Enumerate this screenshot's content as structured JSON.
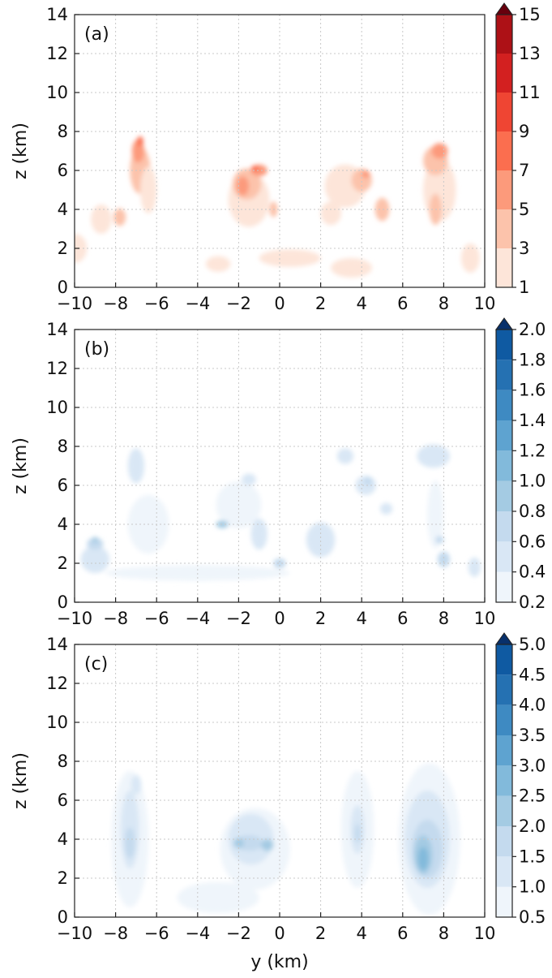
{
  "chart_data": [
    {
      "type": "heatmap",
      "panel_label": "(a)",
      "xlabel": "",
      "ylabel": "z (km)",
      "xlim": [
        -10,
        10
      ],
      "ylim": [
        0,
        14
      ],
      "xticks": [
        "−10",
        "−8",
        "−6",
        "−4",
        "−2",
        "0",
        "2",
        "4",
        "6",
        "8",
        "10"
      ],
      "yticks": [
        "0",
        "2",
        "4",
        "6",
        "8",
        "10",
        "12",
        "14"
      ],
      "grid": true,
      "colorbar": {
        "levels": [
          1,
          3,
          5,
          7,
          9,
          11,
          13,
          15
        ],
        "labels": [
          "1",
          "3",
          "5",
          "7",
          "9",
          "11",
          "13",
          "15"
        ],
        "colors": [
          "#fde5d9",
          "#fcc3ab",
          "#fc9a7b",
          "#fb6e4f",
          "#ef4533",
          "#d32020",
          "#ad1116"
        ],
        "extend_color": "#67000d",
        "colormap": "Reds"
      },
      "cells": [
        [
          -10,
          2,
          1.2,
          1.5,
          1
        ],
        [
          -8.7,
          3.5,
          1.0,
          1.5,
          1
        ],
        [
          -7.8,
          3.6,
          0.6,
          0.9,
          3
        ],
        [
          -6.8,
          6.0,
          1.0,
          2.4,
          3
        ],
        [
          -6.9,
          7.0,
          0.6,
          1.2,
          5
        ],
        [
          -6.8,
          7.5,
          0.3,
          0.5,
          7
        ],
        [
          -6.4,
          5.0,
          0.8,
          2.4,
          1
        ],
        [
          -1.5,
          4.5,
          2.0,
          2.8,
          1
        ],
        [
          -1.6,
          5.3,
          1.4,
          1.6,
          3
        ],
        [
          -1.8,
          5.2,
          0.6,
          1.0,
          5
        ],
        [
          -1.0,
          6.0,
          0.8,
          0.6,
          5
        ],
        [
          -1.2,
          6.1,
          0.4,
          0.3,
          7
        ],
        [
          -0.3,
          4.0,
          0.4,
          0.8,
          3
        ],
        [
          -3.0,
          1.2,
          1.2,
          0.8,
          1
        ],
        [
          0.5,
          1.5,
          3.0,
          0.9,
          1
        ],
        [
          3.5,
          1.0,
          2.0,
          1.0,
          1
        ],
        [
          3.2,
          5.2,
          2.0,
          2.2,
          1
        ],
        [
          4.0,
          5.5,
          1.0,
          1.2,
          3
        ],
        [
          4.2,
          5.8,
          0.4,
          0.4,
          5
        ],
        [
          5.0,
          4.0,
          0.7,
          1.2,
          3
        ],
        [
          2.5,
          3.8,
          1.0,
          1.2,
          1
        ],
        [
          7.8,
          5.0,
          1.6,
          3.2,
          1
        ],
        [
          7.6,
          6.5,
          1.2,
          1.5,
          3
        ],
        [
          7.8,
          7.0,
          0.8,
          0.8,
          5
        ],
        [
          7.6,
          4.0,
          0.6,
          1.6,
          3
        ],
        [
          9.3,
          1.5,
          0.9,
          1.5,
          1
        ]
      ]
    },
    {
      "type": "heatmap",
      "panel_label": "(b)",
      "xlabel": "",
      "ylabel": "z (km)",
      "xlim": [
        -10,
        10
      ],
      "ylim": [
        0,
        14
      ],
      "xticks": [
        "−10",
        "−8",
        "−6",
        "−4",
        "−2",
        "0",
        "2",
        "4",
        "6",
        "8",
        "10"
      ],
      "yticks": [
        "0",
        "2",
        "4",
        "6",
        "8",
        "10",
        "12",
        "14"
      ],
      "grid": true,
      "colorbar": {
        "levels": [
          0.2,
          0.4,
          0.6,
          0.8,
          1.0,
          1.2,
          1.4,
          1.6,
          1.8,
          2.0
        ],
        "labels": [
          "0.2",
          "0.4",
          "0.6",
          "0.8",
          "1.0",
          "1.2",
          "1.4",
          "1.6",
          "1.8",
          "2.0"
        ],
        "colors": [
          "#eff5fb",
          "#d9e7f5",
          "#c4daee",
          "#a4cbe3",
          "#82badb",
          "#5ea3d0",
          "#3e8ac2",
          "#2571b2",
          "#0f5aa2"
        ],
        "extend_color": "#08306b",
        "colormap": "Blues"
      },
      "cells": [
        [
          -9.0,
          2.2,
          1.4,
          1.4,
          0.4
        ],
        [
          -9.0,
          3.0,
          0.8,
          0.6,
          0.6
        ],
        [
          -9.0,
          3.2,
          0.3,
          0.3,
          0.8
        ],
        [
          -7.0,
          7.0,
          0.8,
          1.8,
          0.4
        ],
        [
          -6.4,
          4.0,
          2.0,
          3.0,
          0.2
        ],
        [
          -2.0,
          5.0,
          2.2,
          2.4,
          0.2
        ],
        [
          -2.8,
          4.0,
          0.6,
          0.4,
          0.8
        ],
        [
          -1.5,
          6.3,
          0.7,
          0.6,
          0.4
        ],
        [
          -1.0,
          3.5,
          0.8,
          1.6,
          0.4
        ],
        [
          -4.0,
          1.5,
          9.0,
          0.8,
          0.2
        ],
        [
          0.0,
          2.0,
          0.6,
          0.5,
          0.6
        ],
        [
          2.0,
          3.2,
          1.4,
          1.8,
          0.4
        ],
        [
          3.2,
          7.5,
          0.8,
          0.8,
          0.4
        ],
        [
          4.2,
          6.0,
          1.0,
          1.0,
          0.4
        ],
        [
          4.3,
          6.2,
          0.4,
          0.4,
          0.6
        ],
        [
          5.2,
          4.8,
          0.6,
          0.6,
          0.4
        ],
        [
          7.5,
          7.5,
          1.6,
          1.2,
          0.4
        ],
        [
          7.6,
          4.5,
          0.8,
          3.5,
          0.2
        ],
        [
          7.8,
          3.2,
          0.4,
          0.4,
          0.6
        ],
        [
          8.0,
          2.2,
          0.6,
          0.8,
          0.6
        ],
        [
          9.5,
          1.8,
          0.6,
          1.0,
          0.4
        ]
      ]
    },
    {
      "type": "heatmap",
      "panel_label": "(c)",
      "xlabel": "y (km)",
      "ylabel": "z (km)",
      "xlim": [
        -10,
        10
      ],
      "ylim": [
        0,
        14
      ],
      "xticks": [
        "−10",
        "−8",
        "−6",
        "−4",
        "−2",
        "0",
        "2",
        "4",
        "6",
        "8",
        "10"
      ],
      "yticks": [
        "0",
        "2",
        "4",
        "6",
        "8",
        "10",
        "12",
        "14"
      ],
      "grid": true,
      "colorbar": {
        "levels": [
          0.5,
          1.0,
          1.5,
          2.0,
          2.5,
          3.0,
          3.5,
          4.0,
          4.5,
          5.0
        ],
        "labels": [
          "0.5",
          "1.0",
          "1.5",
          "2.0",
          "2.5",
          "3.0",
          "3.5",
          "4.0",
          "4.5",
          "5.0"
        ],
        "colors": [
          "#eff5fb",
          "#d9e7f5",
          "#c4daee",
          "#a4cbe3",
          "#82badb",
          "#5ea3d0",
          "#3e8ac2",
          "#2571b2",
          "#0f5aa2"
        ],
        "extend_color": "#08306b",
        "colormap": "Blues"
      },
      "cells": [
        [
          -7.3,
          4.0,
          1.8,
          7.0,
          0.5
        ],
        [
          -7.3,
          4.5,
          0.9,
          4.0,
          1.0
        ],
        [
          -7.3,
          3.8,
          0.5,
          1.6,
          1.5
        ],
        [
          -7.0,
          6.8,
          0.5,
          1.0,
          1.0
        ],
        [
          -1.2,
          3.5,
          3.4,
          4.2,
          0.5
        ],
        [
          -1.4,
          4.0,
          2.2,
          2.6,
          1.0
        ],
        [
          -1.5,
          3.8,
          1.4,
          0.8,
          1.5
        ],
        [
          -0.6,
          3.7,
          0.6,
          0.6,
          2.0
        ],
        [
          -2.0,
          3.8,
          0.5,
          0.5,
          2.0
        ],
        [
          3.8,
          4.5,
          1.6,
          6.0,
          0.5
        ],
        [
          3.8,
          4.5,
          0.7,
          2.5,
          1.0
        ],
        [
          3.8,
          4.3,
          0.3,
          1.0,
          1.5
        ],
        [
          7.3,
          4.0,
          3.0,
          7.8,
          0.5
        ],
        [
          7.2,
          4.0,
          2.2,
          5.0,
          1.0
        ],
        [
          7.2,
          3.5,
          1.5,
          3.0,
          1.5
        ],
        [
          7.0,
          3.2,
          0.9,
          2.0,
          2.0
        ],
        [
          7.0,
          3.0,
          0.5,
          1.2,
          2.5
        ],
        [
          -3.0,
          1.0,
          4.0,
          1.6,
          0.5
        ]
      ]
    }
  ]
}
